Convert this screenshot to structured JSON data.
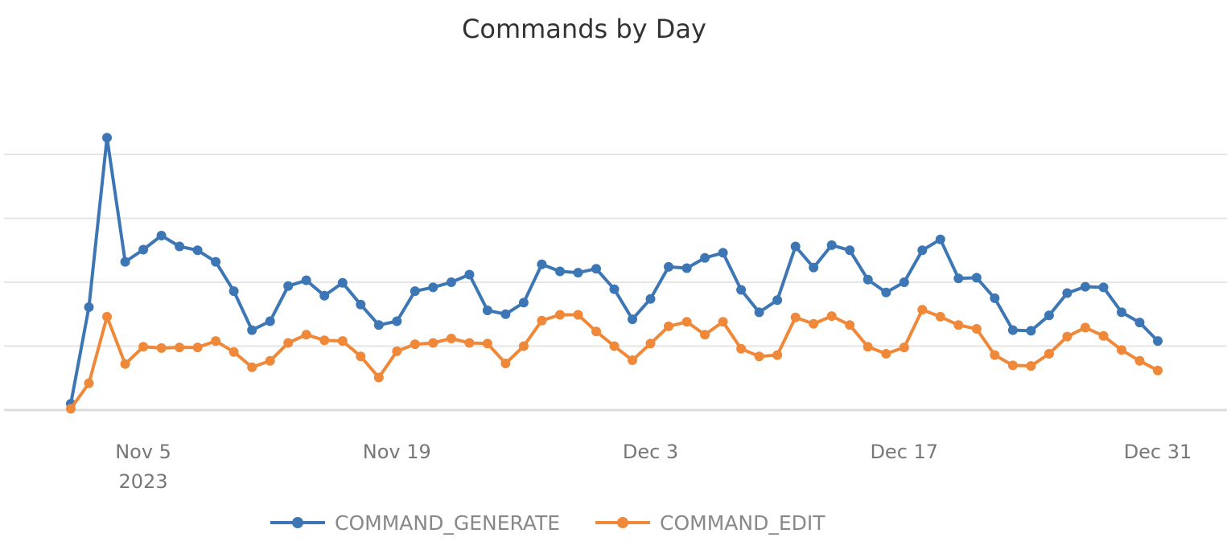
{
  "chart_data": {
    "type": "line",
    "title": "Commands by Day",
    "xlabel": "",
    "ylabel": "",
    "x_start": "2023-11-01",
    "x_end": "2023-12-31",
    "x_ticks": [
      {
        "date": "2023-11-05",
        "label": "Nov 5",
        "sublabel": "2023"
      },
      {
        "date": "2023-11-19",
        "label": "Nov 19",
        "sublabel": ""
      },
      {
        "date": "2023-12-03",
        "label": "Dec 3",
        "sublabel": ""
      },
      {
        "date": "2023-12-17",
        "label": "Dec 17",
        "sublabel": ""
      },
      {
        "date": "2023-12-31",
        "label": "Dec 31",
        "sublabel": ""
      }
    ],
    "ylim": [
      0,
      4
    ],
    "y_gridlines": [
      1,
      2,
      3,
      4
    ],
    "grid": true,
    "legend": "bottom",
    "series": [
      {
        "name": "COMMAND_GENERATE",
        "color": "#3d76b5",
        "values": [
          0.1,
          1.61,
          4.26,
          2.32,
          2.51,
          2.73,
          2.56,
          2.5,
          2.32,
          1.86,
          1.25,
          1.39,
          1.94,
          2.03,
          1.79,
          1.99,
          1.65,
          1.33,
          1.39,
          1.86,
          1.92,
          2.0,
          2.12,
          1.56,
          1.5,
          1.68,
          2.28,
          2.17,
          2.15,
          2.21,
          1.89,
          1.42,
          1.74,
          2.24,
          2.22,
          2.38,
          2.46,
          1.88,
          1.53,
          1.72,
          2.56,
          2.23,
          2.58,
          2.5,
          2.04,
          1.84,
          2.0,
          2.5,
          2.67,
          2.06,
          2.07,
          1.75,
          1.25,
          1.24,
          1.48,
          1.83,
          1.93,
          1.92,
          1.53,
          1.37,
          1.08
        ]
      },
      {
        "name": "COMMAND_EDIT",
        "color": "#f0883a",
        "values": [
          0.02,
          0.42,
          1.46,
          0.72,
          0.99,
          0.97,
          0.98,
          0.98,
          1.08,
          0.91,
          0.67,
          0.77,
          1.05,
          1.18,
          1.09,
          1.08,
          0.84,
          0.51,
          0.92,
          1.03,
          1.05,
          1.12,
          1.05,
          1.04,
          0.73,
          1.0,
          1.4,
          1.49,
          1.49,
          1.23,
          1.0,
          0.78,
          1.04,
          1.31,
          1.38,
          1.18,
          1.38,
          0.96,
          0.84,
          0.86,
          1.45,
          1.35,
          1.47,
          1.33,
          0.99,
          0.88,
          0.98,
          1.57,
          1.46,
          1.33,
          1.27,
          0.86,
          0.7,
          0.69,
          0.88,
          1.15,
          1.29,
          1.16,
          0.94,
          0.77,
          0.62
        ]
      }
    ]
  }
}
